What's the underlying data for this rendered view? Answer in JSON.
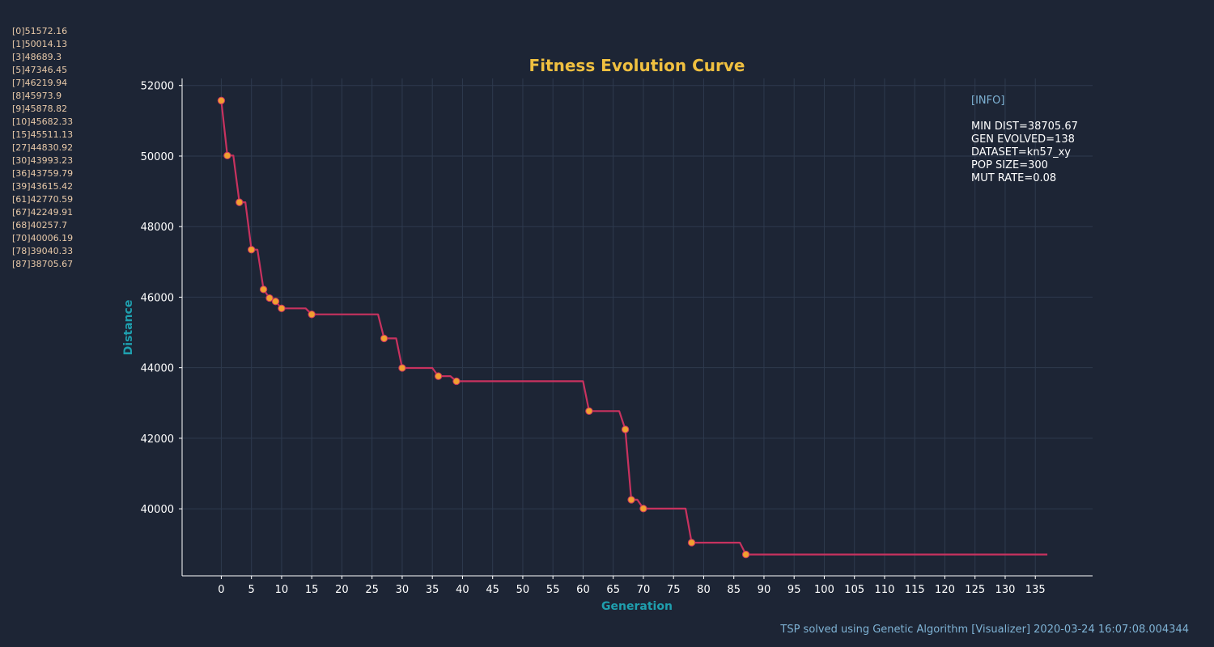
{
  "log_entries": [
    "[0]51572.16",
    "[1]50014.13",
    "[3]48689.3",
    "[5]47346.45",
    "[7]46219.94",
    "[8]45973.9",
    "[9]45878.82",
    "[10]45682.33",
    "[15]45511.13",
    "[27]44830.92",
    "[30]43993.23",
    "[36]43759.79",
    "[39]43615.42",
    "[61]42770.59",
    "[67]42249.91",
    "[68]40257.7",
    "[70]40006.19",
    "[78]39040.33",
    "[87]38705.67"
  ],
  "info": {
    "header": "[INFO]",
    "lines": [
      "MIN DIST=38705.67",
      "GEN EVOLVED=138",
      "DATASET=kn57_xy",
      "POP SIZE=300",
      "MUT RATE=0.08"
    ]
  },
  "footer": "TSP solved using Genetic Algorithm [Visualizer] 2020-03-24 16:07:08.004344",
  "colors": {
    "background": "#1d2535",
    "line": "#c8325f",
    "marker": "#f0a030",
    "title": "#f0c040",
    "axis_label": "#1f9fae",
    "info_header": "#7fb3d5",
    "text": "#ffffff",
    "log_text": "#e8c9a8"
  },
  "chart_data": {
    "type": "line",
    "title": "Fitness Evolution Curve",
    "xlabel": "Generation",
    "ylabel": "Distance",
    "xticks": [
      0,
      5,
      10,
      15,
      20,
      25,
      30,
      35,
      40,
      45,
      50,
      55,
      60,
      65,
      70,
      75,
      80,
      85,
      90,
      95,
      100,
      105,
      110,
      115,
      120,
      125,
      130,
      135
    ],
    "yticks": [
      40000,
      42000,
      44000,
      46000,
      48000,
      50000,
      52000
    ],
    "xlim": [
      -6.5,
      144.5
    ],
    "ylim": [
      38100,
      52200
    ],
    "grid": true,
    "series": [
      {
        "values": [
          [
            0,
            51572.16
          ],
          [
            1,
            50014.13
          ],
          [
            2,
            50014.13
          ],
          [
            3,
            48689.3
          ],
          [
            4,
            48689.3
          ],
          [
            5,
            47346.45
          ],
          [
            6,
            47346.45
          ],
          [
            7,
            46219.94
          ],
          [
            8,
            45973.9
          ],
          [
            9,
            45878.82
          ],
          [
            10,
            45682.33
          ],
          [
            14,
            45682.33
          ],
          [
            15,
            45511.13
          ],
          [
            26,
            45511.13
          ],
          [
            27,
            44830.92
          ],
          [
            29,
            44830.92
          ],
          [
            30,
            43993.23
          ],
          [
            35,
            43993.23
          ],
          [
            36,
            43759.79
          ],
          [
            38,
            43759.79
          ],
          [
            39,
            43615.42
          ],
          [
            60,
            43615.42
          ],
          [
            61,
            42770.59
          ],
          [
            66,
            42770.59
          ],
          [
            67,
            42249.91
          ],
          [
            68,
            40257.7
          ],
          [
            69,
            40257.7
          ],
          [
            70,
            40006.19
          ],
          [
            77,
            40006.19
          ],
          [
            78,
            39040.33
          ],
          [
            86,
            39040.33
          ],
          [
            87,
            38705.67
          ],
          [
            137,
            38705.67
          ]
        ]
      }
    ],
    "improvement_points": [
      [
        0,
        51572.16
      ],
      [
        1,
        50014.13
      ],
      [
        3,
        48689.3
      ],
      [
        5,
        47346.45
      ],
      [
        7,
        46219.94
      ],
      [
        8,
        45973.9
      ],
      [
        9,
        45878.82
      ],
      [
        10,
        45682.33
      ],
      [
        15,
        45511.13
      ],
      [
        27,
        44830.92
      ],
      [
        30,
        43993.23
      ],
      [
        36,
        43759.79
      ],
      [
        39,
        43615.42
      ],
      [
        61,
        42770.59
      ],
      [
        67,
        42249.91
      ],
      [
        68,
        40257.7
      ],
      [
        70,
        40006.19
      ],
      [
        78,
        39040.33
      ],
      [
        87,
        38705.67
      ]
    ]
  }
}
